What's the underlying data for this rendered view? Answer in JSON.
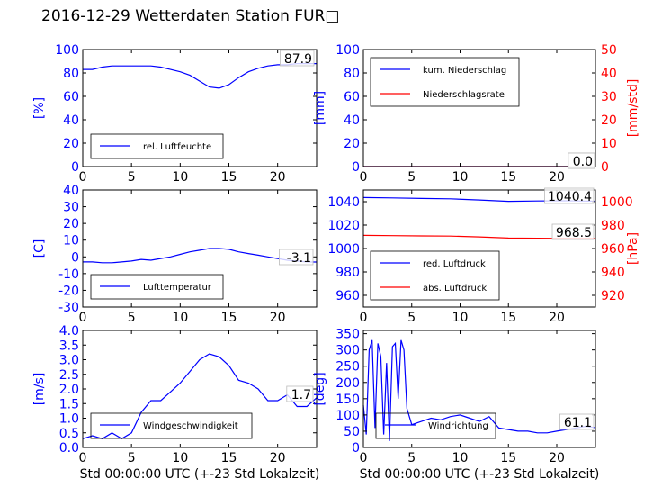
{
  "title": "2016-12-29 Wetterdaten Station FUR□",
  "colors": {
    "blue": "#0000ff",
    "red": "#ff0000",
    "black": "#000000",
    "legend_border": "#000000",
    "label_box": "#bbbbbb"
  },
  "xlabel": "Std 00:00:00 UTC (+-23 Std Lokalzeit)",
  "chart_data": [
    {
      "id": "humidity",
      "type": "line",
      "ylabel_left": "[%]",
      "ylim_left": [
        0,
        100
      ],
      "yticks_left": [
        0,
        20,
        40,
        60,
        80,
        100
      ],
      "xlim": [
        0,
        24
      ],
      "xticks": [
        0,
        5,
        10,
        15,
        20
      ],
      "legend": [
        "rel. Luftfeuchte"
      ],
      "last_value_label": "87.9",
      "series": [
        {
          "name": "rel. Luftfeuchte",
          "axis": "left",
          "color": "blue",
          "x": [
            0,
            1,
            2,
            3,
            4,
            5,
            6,
            7,
            8,
            9,
            10,
            11,
            12,
            13,
            14,
            15,
            16,
            17,
            18,
            19,
            20,
            21,
            22,
            23,
            24
          ],
          "y": [
            83,
            83,
            85,
            86,
            86,
            86,
            86,
            86,
            85,
            83,
            81,
            78,
            73,
            68,
            67,
            70,
            76,
            81,
            84,
            86,
            87,
            87,
            88,
            88,
            88
          ]
        }
      ]
    },
    {
      "id": "precip",
      "type": "line",
      "ylabel_left": "[mm]",
      "ylabel_right": "[mm/std]",
      "ylim_left": [
        0,
        100
      ],
      "yticks_left": [
        0,
        20,
        40,
        60,
        80,
        100
      ],
      "ylim_right": [
        0,
        50
      ],
      "yticks_right": [
        0,
        10,
        20,
        30,
        40,
        50
      ],
      "xlim": [
        0,
        24
      ],
      "xticks": [
        0,
        5,
        10,
        15,
        20
      ],
      "legend": [
        "kum. Niederschlag",
        "Niederschlagsrate"
      ],
      "last_value_label": "0.0",
      "last_value_label_2": "0.0",
      "series": [
        {
          "name": "kum. Niederschlag",
          "axis": "left",
          "color": "blue",
          "x": [
            0,
            24
          ],
          "y": [
            0,
            0
          ]
        },
        {
          "name": "Niederschlagsrate",
          "axis": "right",
          "color": "red",
          "x": [
            0,
            24
          ],
          "y": [
            0,
            0
          ]
        }
      ]
    },
    {
      "id": "temperature",
      "type": "line",
      "ylabel_left": "[C]",
      "ylim_left": [
        -30,
        40
      ],
      "yticks_left": [
        -30,
        -20,
        -10,
        0,
        10,
        20,
        30,
        40
      ],
      "xlim": [
        0,
        24
      ],
      "xticks": [
        0,
        5,
        10,
        15,
        20
      ],
      "legend": [
        "Lufttemperatur"
      ],
      "last_value_label": "-3.1",
      "series": [
        {
          "name": "Lufttemperatur",
          "axis": "left",
          "color": "blue",
          "x": [
            0,
            1,
            2,
            3,
            4,
            5,
            6,
            7,
            8,
            9,
            10,
            11,
            12,
            13,
            14,
            15,
            16,
            17,
            18,
            19,
            20,
            21,
            22,
            23,
            24
          ],
          "y": [
            -3,
            -3,
            -3.5,
            -3.5,
            -3,
            -2.5,
            -1.5,
            -2,
            -1,
            0,
            1.5,
            3,
            4,
            5,
            5,
            4.5,
            3,
            2,
            1,
            0,
            -1,
            -2,
            -2.5,
            -3,
            -3.1
          ]
        }
      ]
    },
    {
      "id": "pressure",
      "type": "line",
      "ylabel_right": "[hPa]",
      "ylim_left": [
        950,
        1050
      ],
      "yticks_left": [
        960,
        980,
        1000,
        1020,
        1040
      ],
      "ylim_right": [
        910,
        1010
      ],
      "yticks_right": [
        920,
        940,
        960,
        980,
        1000
      ],
      "xlim": [
        0,
        24
      ],
      "xticks": [
        0,
        5,
        10,
        15,
        20
      ],
      "legend": [
        "red. Luftdruck",
        "abs. Luftdruck"
      ],
      "last_value_label": "1040.4",
      "last_value_label_2": "968.5",
      "series": [
        {
          "name": "red. Luftdruck",
          "axis": "left",
          "color": "blue",
          "x": [
            0,
            3,
            6,
            9,
            12,
            15,
            18,
            21,
            24
          ],
          "y": [
            1043.5,
            1043.2,
            1042.8,
            1042.5,
            1041.5,
            1040.3,
            1040.6,
            1040.8,
            1040.4
          ]
        },
        {
          "name": "abs. Luftdruck",
          "axis": "right",
          "color": "red",
          "x": [
            0,
            3,
            6,
            9,
            12,
            15,
            18,
            21,
            24
          ],
          "y": [
            971.2,
            971.0,
            970.8,
            970.6,
            969.9,
            968.9,
            968.8,
            968.6,
            968.5
          ]
        }
      ]
    },
    {
      "id": "wind_speed",
      "type": "line",
      "ylabel_left": "[m/s]",
      "ylim_left": [
        0,
        4
      ],
      "yticks_left": [
        0.0,
        0.5,
        1.0,
        1.5,
        2.0,
        2.5,
        3.0,
        3.5,
        4.0
      ],
      "xlim": [
        0,
        24
      ],
      "xticks": [
        0,
        5,
        10,
        15,
        20
      ],
      "xlabel_visible": true,
      "legend": [
        "Windgeschwindigkeit"
      ],
      "last_value_label": "1.7",
      "series": [
        {
          "name": "Windgeschwindigkeit",
          "axis": "left",
          "color": "blue",
          "x": [
            0,
            1,
            2,
            3,
            4,
            5,
            6,
            7,
            8,
            9,
            10,
            11,
            12,
            13,
            14,
            15,
            16,
            17,
            18,
            19,
            20,
            21,
            22,
            23,
            24
          ],
          "y": [
            0.3,
            0.4,
            0.3,
            0.5,
            0.3,
            0.5,
            1.2,
            1.6,
            1.6,
            1.9,
            2.2,
            2.6,
            3.0,
            3.2,
            3.1,
            2.8,
            2.3,
            2.2,
            2.0,
            1.6,
            1.6,
            1.8,
            1.4,
            1.4,
            1.7
          ]
        }
      ]
    },
    {
      "id": "wind_dir",
      "type": "line",
      "ylabel_left": "[deg]",
      "ylim_left": [
        0,
        360
      ],
      "yticks_left": [
        0,
        50,
        100,
        150,
        200,
        250,
        300,
        350
      ],
      "xlim": [
        0,
        24
      ],
      "xticks": [
        0,
        5,
        10,
        15,
        20
      ],
      "xlabel_visible": true,
      "legend": [
        "Windrichtung"
      ],
      "last_value_label": "61.1",
      "series": [
        {
          "name": "Windrichtung",
          "axis": "left",
          "color": "blue",
          "x": [
            0.0,
            0.3,
            0.6,
            0.9,
            1.2,
            1.5,
            1.8,
            2.1,
            2.4,
            2.7,
            3.0,
            3.3,
            3.6,
            3.9,
            4.2,
            4.5,
            5,
            6,
            7,
            8,
            9,
            10,
            11,
            12,
            13,
            14,
            15,
            16,
            17,
            18,
            19,
            20,
            21,
            22,
            23,
            24
          ],
          "y": [
            130,
            40,
            300,
            330,
            60,
            320,
            280,
            40,
            260,
            20,
            310,
            320,
            150,
            330,
            300,
            120,
            70,
            80,
            90,
            85,
            95,
            100,
            90,
            80,
            95,
            60,
            55,
            50,
            50,
            45,
            45,
            50,
            55,
            60,
            65,
            61
          ]
        }
      ]
    }
  ]
}
